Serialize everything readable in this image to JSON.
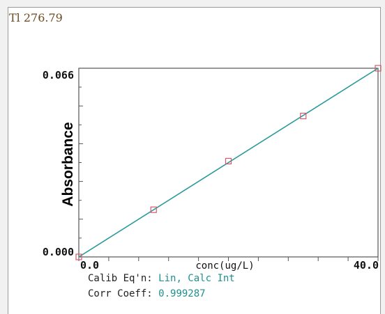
{
  "header": {
    "element_wavelength": "Tl 276.79"
  },
  "chart_data": {
    "type": "scatter",
    "xlabel": "conc(ug/L)",
    "ylabel": "Absorbance",
    "xlim": [
      0,
      40
    ],
    "ylim": [
      0,
      0.066
    ],
    "x_tick_labels": [
      "0.0",
      "40.0"
    ],
    "y_tick_labels": [
      "0.066",
      "0.000"
    ],
    "points": [
      {
        "x": 0,
        "y": 0.0
      },
      {
        "x": 10,
        "y": 0.0165
      },
      {
        "x": 20,
        "y": 0.0335
      },
      {
        "x": 30,
        "y": 0.0493
      },
      {
        "x": 40,
        "y": 0.066
      }
    ],
    "fit_line": {
      "x": [
        0,
        40
      ],
      "y": [
        0,
        0.066
      ]
    },
    "colors": {
      "fit_line": "#2a9a9a",
      "points": "#d45a6a"
    },
    "grid": false
  },
  "info": {
    "calib_key": "Calib Eq'n:",
    "calib_value": "Lin, Calc Int",
    "corr_key": "Corr Coeff:",
    "corr_value": "0.999287"
  }
}
